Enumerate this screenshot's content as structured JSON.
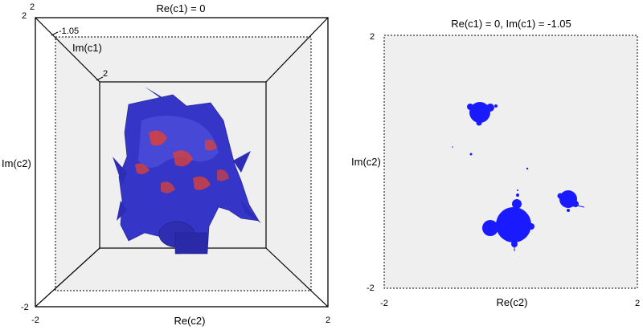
{
  "left_panel": {
    "title": "Re(c1) = 0",
    "ylabel": "Im(c2)",
    "xlabel": "Re(c2)",
    "ticks": {
      "top_left": "2",
      "bottom_left": "-2",
      "x_start": "-2",
      "x_end": "2",
      "depth_outer": "-1.05",
      "depth_inner": "2"
    },
    "depth_axis_label": "Im(c1)",
    "colors": {
      "surface": "#3333cc",
      "highlight": "#d9413a",
      "floor": "#efefef"
    }
  },
  "right_panel": {
    "title": "Re(c1) = 0, Im(c1) = -1.05",
    "ylabel": "Im(c2)",
    "xlabel": "Re(c2)",
    "ticks": {
      "y_top": "2",
      "y_bottom": "-2",
      "x_left": "-2",
      "x_right": "2"
    },
    "colors": {
      "set": "#1a1aff",
      "background": "#efefef"
    }
  }
}
